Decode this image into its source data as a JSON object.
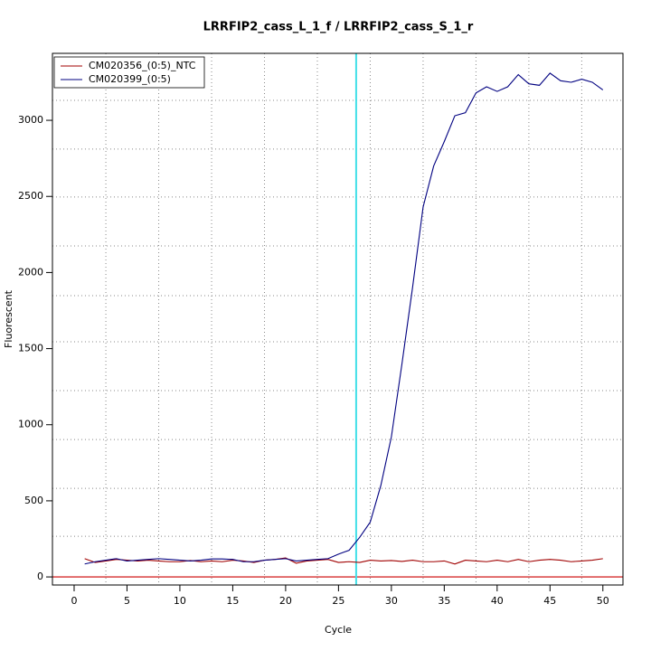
{
  "chart_data": {
    "type": "line",
    "title": "LRRFIP2_cass_L_1_f / LRRFIP2_cass_S_1_r",
    "x_label": "Cycle",
    "y_label": "Fluorescent",
    "x": [
      1,
      2,
      3,
      4,
      5,
      6,
      7,
      8,
      9,
      10,
      11,
      12,
      13,
      14,
      15,
      16,
      17,
      18,
      19,
      20,
      21,
      22,
      23,
      24,
      25,
      26,
      27,
      28,
      29,
      30,
      31,
      32,
      33,
      34,
      35,
      36,
      37,
      38,
      39,
      40,
      41,
      42,
      43,
      44,
      45,
      46,
      47,
      48,
      49,
      50
    ],
    "series": [
      {
        "name": "CM020356_(0:5)_NTC",
        "color": "#a00000",
        "values": [
          120,
          95,
          105,
          115,
          110,
          105,
          110,
          105,
          100,
          100,
          108,
          100,
          105,
          100,
          110,
          105,
          95,
          110,
          115,
          125,
          90,
          105,
          110,
          115,
          95,
          100,
          95,
          110,
          105,
          108,
          102,
          110,
          100,
          100,
          105,
          85,
          110,
          105,
          100,
          110,
          100,
          115,
          100,
          110,
          115,
          110,
          100,
          105,
          110,
          120
        ]
      },
      {
        "name": "CM020399_(0:5)",
        "color": "#000080",
        "values": [
          85,
          100,
          110,
          120,
          105,
          110,
          115,
          120,
          115,
          110,
          105,
          110,
          118,
          118,
          115,
          100,
          100,
          110,
          115,
          120,
          105,
          110,
          115,
          120,
          150,
          175,
          260,
          360,
          600,
          920,
          1400,
          1900,
          2430,
          2700,
          2860,
          3030,
          3050,
          3180,
          3220,
          3190,
          3220,
          3300,
          3240,
          3230,
          3310,
          3260,
          3250,
          3270,
          3250,
          3200
        ]
      }
    ],
    "xlim": [
      -2.05,
      51.9
    ],
    "ylim": [
      -53,
      3440
    ],
    "xticks": [
      0,
      5,
      10,
      15,
      20,
      25,
      30,
      35,
      40,
      45,
      50
    ],
    "yticks": [
      0,
      500,
      1000,
      1500,
      2000,
      2500,
      3000
    ],
    "xgrid": [
      3,
      8,
      13,
      18,
      23,
      28,
      33,
      38,
      43,
      48
    ],
    "ygrid": [
      267,
      582,
      903,
      1224,
      1545,
      1848,
      2175,
      2496,
      2811,
      3131
    ],
    "threshold": 0,
    "threshold_color": "#cc0000",
    "ct_line": 26.67,
    "ct_color": "#40e0e8",
    "legend": "top-left"
  }
}
